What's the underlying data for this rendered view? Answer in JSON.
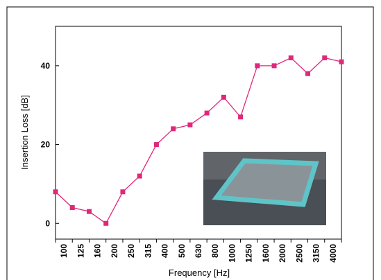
{
  "chart_data": {
    "type": "line",
    "x_label": "Frequency [Hz]",
    "y_label": "Insertion Loss [dB]",
    "categories": [
      null,
      "100",
      "125",
      "160",
      "200",
      "250",
      "315",
      "400",
      "500",
      "630",
      "800",
      "1000",
      "1250",
      "1600",
      "2000",
      "2500",
      "3150",
      "4000"
    ],
    "series": [
      {
        "color": "#e0287a",
        "values": [
          8,
          4,
          3,
          0,
          8,
          12,
          20,
          24,
          25,
          28,
          32,
          27,
          40,
          40,
          42,
          38,
          42,
          41
        ]
      }
    ],
    "ylim": [
      -4,
      50
    ],
    "yticks": [
      0,
      20,
      40
    ]
  }
}
